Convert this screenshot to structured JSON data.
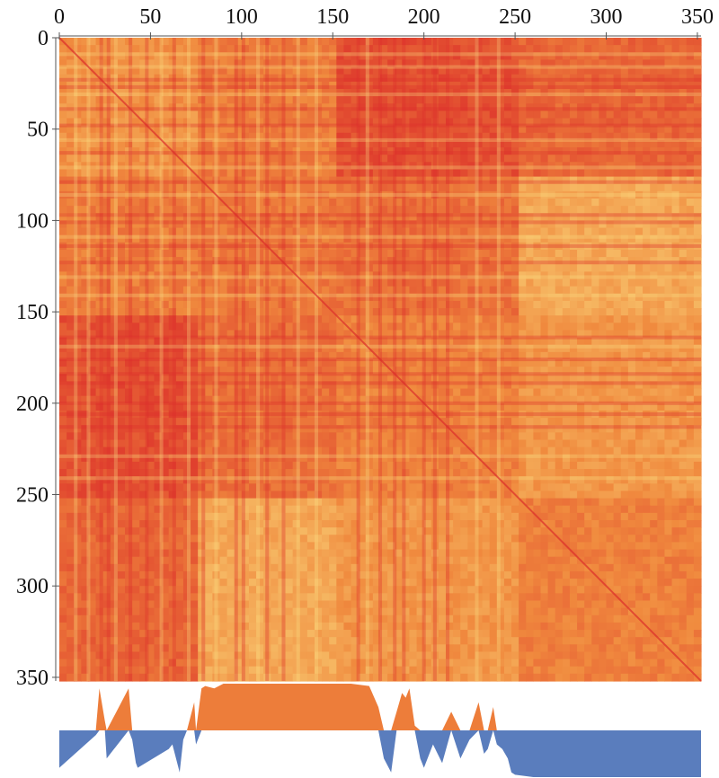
{
  "chart_data": {
    "type": "heatmap",
    "title": "",
    "xlabel": "",
    "ylabel": "",
    "n": 352,
    "xlim": [
      0,
      352
    ],
    "ylim": [
      0,
      352
    ],
    "x_ticks": [
      "0",
      "50",
      "100",
      "150",
      "200",
      "250",
      "300",
      "350"
    ],
    "y_ticks": [
      "0",
      "50",
      "100",
      "150",
      "200",
      "250",
      "300",
      "350"
    ],
    "colormap": {
      "low": "#dc2f2a",
      "mid": "#f08a3e",
      "high": "#fbe083"
    },
    "blocks": [
      {
        "rows": [
          0,
          75
        ],
        "cols": [
          0,
          75
        ],
        "level": 0.55
      },
      {
        "rows": [
          0,
          75
        ],
        "cols": [
          75,
          150
        ],
        "level": 0.35
      },
      {
        "rows": [
          0,
          75
        ],
        "cols": [
          150,
          250
        ],
        "level": 0.15
      },
      {
        "rows": [
          0,
          75
        ],
        "cols": [
          250,
          352
        ],
        "level": 0.25
      },
      {
        "rows": [
          75,
          150
        ],
        "cols": [
          0,
          75
        ],
        "level": 0.5
      },
      {
        "rows": [
          75,
          150
        ],
        "cols": [
          75,
          150
        ],
        "level": 0.4
      },
      {
        "rows": [
          75,
          150
        ],
        "cols": [
          150,
          250
        ],
        "level": 0.45
      },
      {
        "rows": [
          75,
          150
        ],
        "cols": [
          250,
          352
        ],
        "level": 0.7
      },
      {
        "rows": [
          150,
          250
        ],
        "cols": [
          0,
          75
        ],
        "level": 0.2
      },
      {
        "rows": [
          150,
          250
        ],
        "cols": [
          75,
          150
        ],
        "level": 0.25
      },
      {
        "rows": [
          150,
          250
        ],
        "cols": [
          150,
          250
        ],
        "level": 0.45
      },
      {
        "rows": [
          150,
          250
        ],
        "cols": [
          250,
          352
        ],
        "level": 0.55
      },
      {
        "rows": [
          250,
          352
        ],
        "cols": [
          0,
          75
        ],
        "level": 0.35
      },
      {
        "rows": [
          250,
          352
        ],
        "cols": [
          75,
          150
        ],
        "level": 0.65
      },
      {
        "rows": [
          250,
          352
        ],
        "cols": [
          150,
          250
        ],
        "level": 0.6
      },
      {
        "rows": [
          250,
          352
        ],
        "cols": [
          250,
          352
        ],
        "level": 0.45
      }
    ],
    "dark_stripes": [
      22,
      26,
      38,
      47,
      62,
      78,
      96,
      100,
      113,
      122,
      163,
      175,
      183,
      188,
      199,
      205,
      212
    ],
    "light_stripes": [
      8,
      15,
      30,
      55,
      70,
      85,
      108,
      130,
      140,
      168,
      228,
      240
    ],
    "track": {
      "type": "area",
      "x": [
        0,
        20,
        22,
        25,
        26,
        38,
        40,
        42,
        43,
        60,
        62,
        66,
        68,
        70,
        74,
        75,
        78,
        80,
        85,
        90,
        100,
        110,
        120,
        130,
        140,
        150,
        160,
        170,
        175,
        178,
        182,
        185,
        188,
        190,
        192,
        195,
        198,
        200,
        205,
        210,
        215,
        220,
        225,
        230,
        233,
        235,
        238,
        240,
        243,
        246,
        248,
        250,
        260,
        280,
        300,
        320,
        340,
        352
      ],
      "values": [
        -0.8,
        -0.1,
        0.9,
        0.2,
        -0.6,
        0.9,
        -0.2,
        -0.7,
        -0.8,
        -0.4,
        -0.3,
        -0.9,
        -0.2,
        0.0,
        0.6,
        -0.3,
        0.9,
        0.95,
        0.9,
        1.0,
        1.0,
        1.0,
        1.0,
        1.0,
        1.0,
        1.0,
        1.0,
        0.95,
        0.5,
        -0.6,
        -0.9,
        0.4,
        0.8,
        0.7,
        0.9,
        0.1,
        -0.6,
        -0.8,
        -0.3,
        -0.7,
        0.4,
        -0.6,
        -0.2,
        0.6,
        -0.5,
        -0.4,
        0.5,
        -0.3,
        -0.4,
        -0.6,
        -0.9,
        -0.95,
        -1.0,
        -1.0,
        -1.0,
        -1.0,
        -1.0,
        -1.0
      ],
      "ylim": [
        -1,
        1
      ],
      "positive_color": "#ed7d3a",
      "negative_color": "#5a7dbd"
    }
  }
}
